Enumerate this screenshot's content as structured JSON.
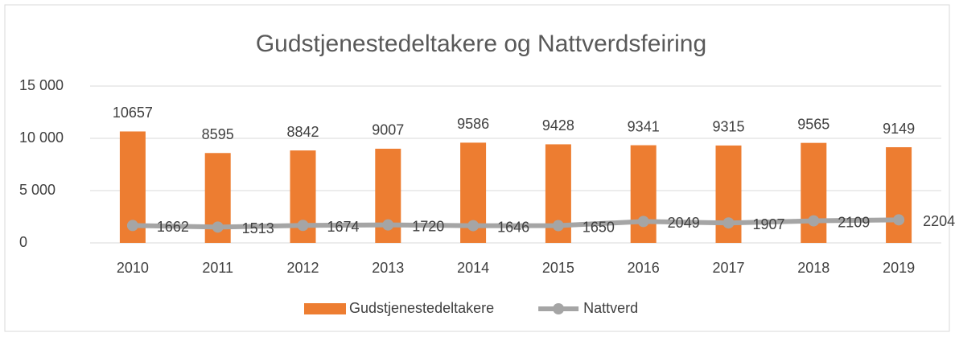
{
  "chart_data": {
    "type": "bar",
    "title": "Gudstjenestedeltakere og Nattverdsfeiring",
    "categories": [
      "2010",
      "2011",
      "2012",
      "2013",
      "2014",
      "2015",
      "2016",
      "2017",
      "2018",
      "2019"
    ],
    "series": [
      {
        "name": "Gudstjenestedeltakere",
        "type": "bar",
        "color": "#ed7d31",
        "values": [
          10657,
          8595,
          8842,
          9007,
          9586,
          9428,
          9341,
          9315,
          9565,
          9149
        ]
      },
      {
        "name": "Nattverd",
        "type": "line",
        "color": "#a5a5a5",
        "values": [
          1662,
          1513,
          1674,
          1720,
          1646,
          1650,
          2049,
          1907,
          2109,
          2204
        ]
      }
    ],
    "ylim": [
      0,
      15000
    ],
    "yticks": [
      0,
      {
        "value": 5000,
        "label": "5 000"
      },
      {
        "value": 10000,
        "label": "10 000"
      },
      {
        "value": 15000,
        "label": "15 000"
      }
    ],
    "grid": true,
    "legend": "bottom"
  }
}
